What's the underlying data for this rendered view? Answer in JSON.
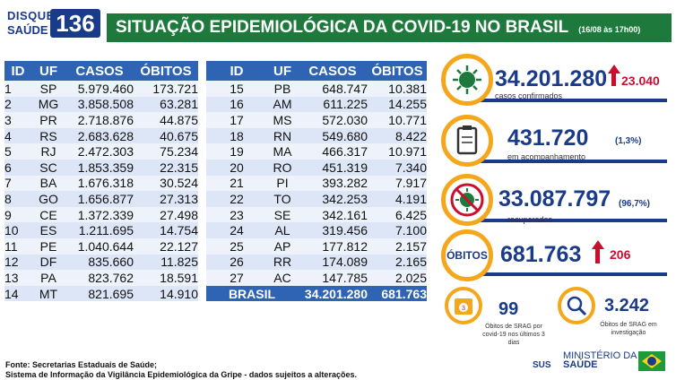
{
  "logo": {
    "line1": "DISQUE",
    "line2": "SAÚDE",
    "number": "136"
  },
  "header": {
    "title": "SITUAÇÃO EPIDEMIOLÓGICA DA COVID-19 NO BRASIL",
    "date": "(16/08 às 17h00)"
  },
  "table": {
    "columns": [
      "ID",
      "UF",
      "CASOS",
      "ÓBITOS"
    ],
    "left_rows": [
      [
        "1",
        "SP",
        "5.979.460",
        "173.721"
      ],
      [
        "2",
        "MG",
        "3.858.508",
        "63.281"
      ],
      [
        "3",
        "PR",
        "2.718.876",
        "44.875"
      ],
      [
        "4",
        "RS",
        "2.683.628",
        "40.675"
      ],
      [
        "5",
        "RJ",
        "2.472.303",
        "75.234"
      ],
      [
        "6",
        "SC",
        "1.853.359",
        "22.315"
      ],
      [
        "7",
        "BA",
        "1.676.318",
        "30.524"
      ],
      [
        "8",
        "GO",
        "1.656.877",
        "27.313"
      ],
      [
        "9",
        "CE",
        "1.372.339",
        "27.498"
      ],
      [
        "10",
        "ES",
        "1.211.695",
        "14.754"
      ],
      [
        "11",
        "PE",
        "1.040.644",
        "22.127"
      ],
      [
        "12",
        "DF",
        "835.660",
        "11.825"
      ],
      [
        "13",
        "PA",
        "823.762",
        "18.591"
      ],
      [
        "14",
        "MT",
        "821.695",
        "14.910"
      ]
    ],
    "right_rows": [
      [
        "15",
        "PB",
        "648.747",
        "10.381"
      ],
      [
        "16",
        "AM",
        "611.225",
        "14.255"
      ],
      [
        "17",
        "MS",
        "572.030",
        "10.771"
      ],
      [
        "18",
        "RN",
        "549.680",
        "8.422"
      ],
      [
        "19",
        "MA",
        "466.317",
        "10.971"
      ],
      [
        "20",
        "RO",
        "451.319",
        "7.340"
      ],
      [
        "21",
        "PI",
        "393.282",
        "7.917"
      ],
      [
        "22",
        "TO",
        "342.253",
        "4.191"
      ],
      [
        "23",
        "SE",
        "342.161",
        "6.425"
      ],
      [
        "24",
        "AL",
        "319.456",
        "7.100"
      ],
      [
        "25",
        "AP",
        "177.812",
        "2.157"
      ],
      [
        "26",
        "RR",
        "174.089",
        "2.165"
      ],
      [
        "27",
        "AC",
        "147.785",
        "2.025"
      ]
    ],
    "total": {
      "label": "BRASIL",
      "cases": "34.201.280",
      "deaths": "681.763"
    }
  },
  "stats": {
    "confirmed": {
      "value": "34.201.280",
      "label": "casos confirmados",
      "delta": "23.040",
      "icon": "virus-icon"
    },
    "monitoring": {
      "value": "431.720",
      "label": "em acompanhamento",
      "pct": "(1,3%)",
      "icon": "clipboard-icon"
    },
    "recovered": {
      "value": "33.087.797",
      "label": "recuperados",
      "pct": "(96,7%)",
      "icon": "no-virus-icon"
    },
    "deaths": {
      "badge": "ÓBITOS",
      "value": "681.763",
      "delta": "206"
    },
    "srag": {
      "value": "99",
      "label": "Óbitos de SRAG por covid-19 nos últimos 3 dias",
      "icon": "calendar-icon"
    },
    "investigation": {
      "value": "3.242",
      "label": "Óbitos de SRAG em investigação",
      "icon": "magnifier-icon"
    }
  },
  "footer": {
    "line1": "Fonte: Secretarias Estaduais de Saúde;",
    "line2": "Sistema de Informação da Vigilância Epidemiológica da Gripe - dados sujeitos a alterações."
  },
  "branding": {
    "sus": "SUS",
    "ministry_line1": "MINISTÉRIO DA",
    "ministry_line2": "SAÚDE"
  },
  "colors": {
    "green": "#1e7a3c",
    "blue": "#2f64b4",
    "navy": "#1a3a8a",
    "orange": "#f4a71d",
    "red": "#c8102e"
  }
}
